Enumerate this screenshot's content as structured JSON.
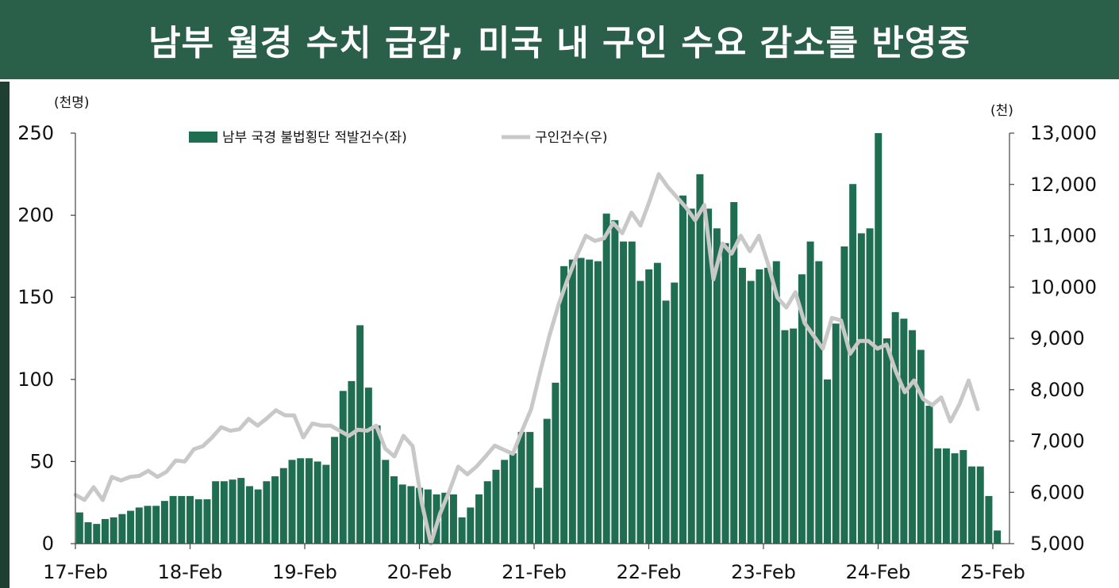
{
  "header": {
    "title": "남부 월경 수치 급감, 미국 내 구인 수요 감소를 반영중"
  },
  "chart_data": {
    "type": "bar",
    "title": "남부 월경 수치 급감, 미국 내 구인 수요 감소를 반영중",
    "left_unit": "(천명)",
    "right_unit": "(천)",
    "left_ylim": [
      0,
      250
    ],
    "left_ticks": [
      "0",
      "50",
      "100",
      "150",
      "200",
      "250"
    ],
    "right_ylim": [
      5000,
      13000
    ],
    "right_ticks": [
      "5,000",
      "6,000",
      "7,000",
      "8,000",
      "9,000",
      "10,000",
      "11,000",
      "12,000",
      "13,000"
    ],
    "x_ticks": [
      "17-Feb",
      "18-Feb",
      "19-Feb",
      "20-Feb",
      "21-Feb",
      "22-Feb",
      "23-Feb",
      "24-Feb",
      "25-Feb"
    ],
    "legend_position": "top-center",
    "colors": {
      "bars": "#1f6e52",
      "line": "#c8c8c8",
      "header": "#2a5f4a"
    },
    "series": [
      {
        "name": "남부 국경 불법횡단 적발건수(좌)",
        "type": "bar",
        "axis": "left",
        "values": [
          19,
          13,
          12,
          15,
          16,
          18,
          20,
          22,
          23,
          23,
          26,
          29,
          29,
          29,
          27,
          27,
          38,
          38,
          39,
          40,
          35,
          33,
          38,
          41,
          46,
          51,
          52,
          52,
          50,
          48,
          65,
          93,
          99,
          133,
          95,
          72,
          51,
          41,
          36,
          35,
          34,
          33,
          30,
          31,
          30,
          16,
          22,
          30,
          38,
          45,
          51,
          55,
          68,
          68,
          34,
          76,
          98,
          169,
          173,
          174,
          173,
          172,
          201,
          197,
          184,
          184,
          160,
          167,
          171,
          148,
          159,
          212,
          204,
          225,
          204,
          192,
          183,
          208,
          168,
          160,
          167,
          168,
          172,
          130,
          131,
          164,
          184,
          172,
          100,
          134,
          181,
          219,
          189,
          192,
          250,
          125,
          141,
          137,
          130,
          118,
          84,
          58,
          58,
          55,
          57,
          47,
          47,
          29,
          8
        ]
      },
      {
        "name": "구인건수(우)",
        "type": "line",
        "axis": "right",
        "values": [
          5950,
          5850,
          6100,
          5850,
          6300,
          6230,
          6300,
          6320,
          6420,
          6300,
          6400,
          6620,
          6600,
          6840,
          6900,
          7070,
          7270,
          7200,
          7230,
          7430,
          7300,
          7440,
          7600,
          7500,
          7500,
          7070,
          7340,
          7300,
          7300,
          7200,
          7100,
          7220,
          7200,
          7300,
          6850,
          6700,
          7100,
          6900,
          5800,
          5000,
          5580,
          6010,
          6500,
          6350,
          6500,
          6700,
          6910,
          6830,
          6750,
          7200,
          7620,
          8350,
          9050,
          9650,
          10150,
          10600,
          11000,
          10900,
          10950,
          11250,
          11050,
          11450,
          11200,
          11680,
          12200,
          11950,
          11750,
          11550,
          11300,
          11600,
          10150,
          10850,
          10650,
          11000,
          10700,
          11000,
          10450,
          9800,
          9600,
          9900,
          9300,
          9050,
          8800,
          9400,
          9350,
          8700,
          8950,
          8950,
          8800,
          8880,
          8360,
          7950,
          8180,
          7820,
          7700,
          7850,
          7380,
          7720,
          8180,
          7620
        ]
      }
    ]
  }
}
